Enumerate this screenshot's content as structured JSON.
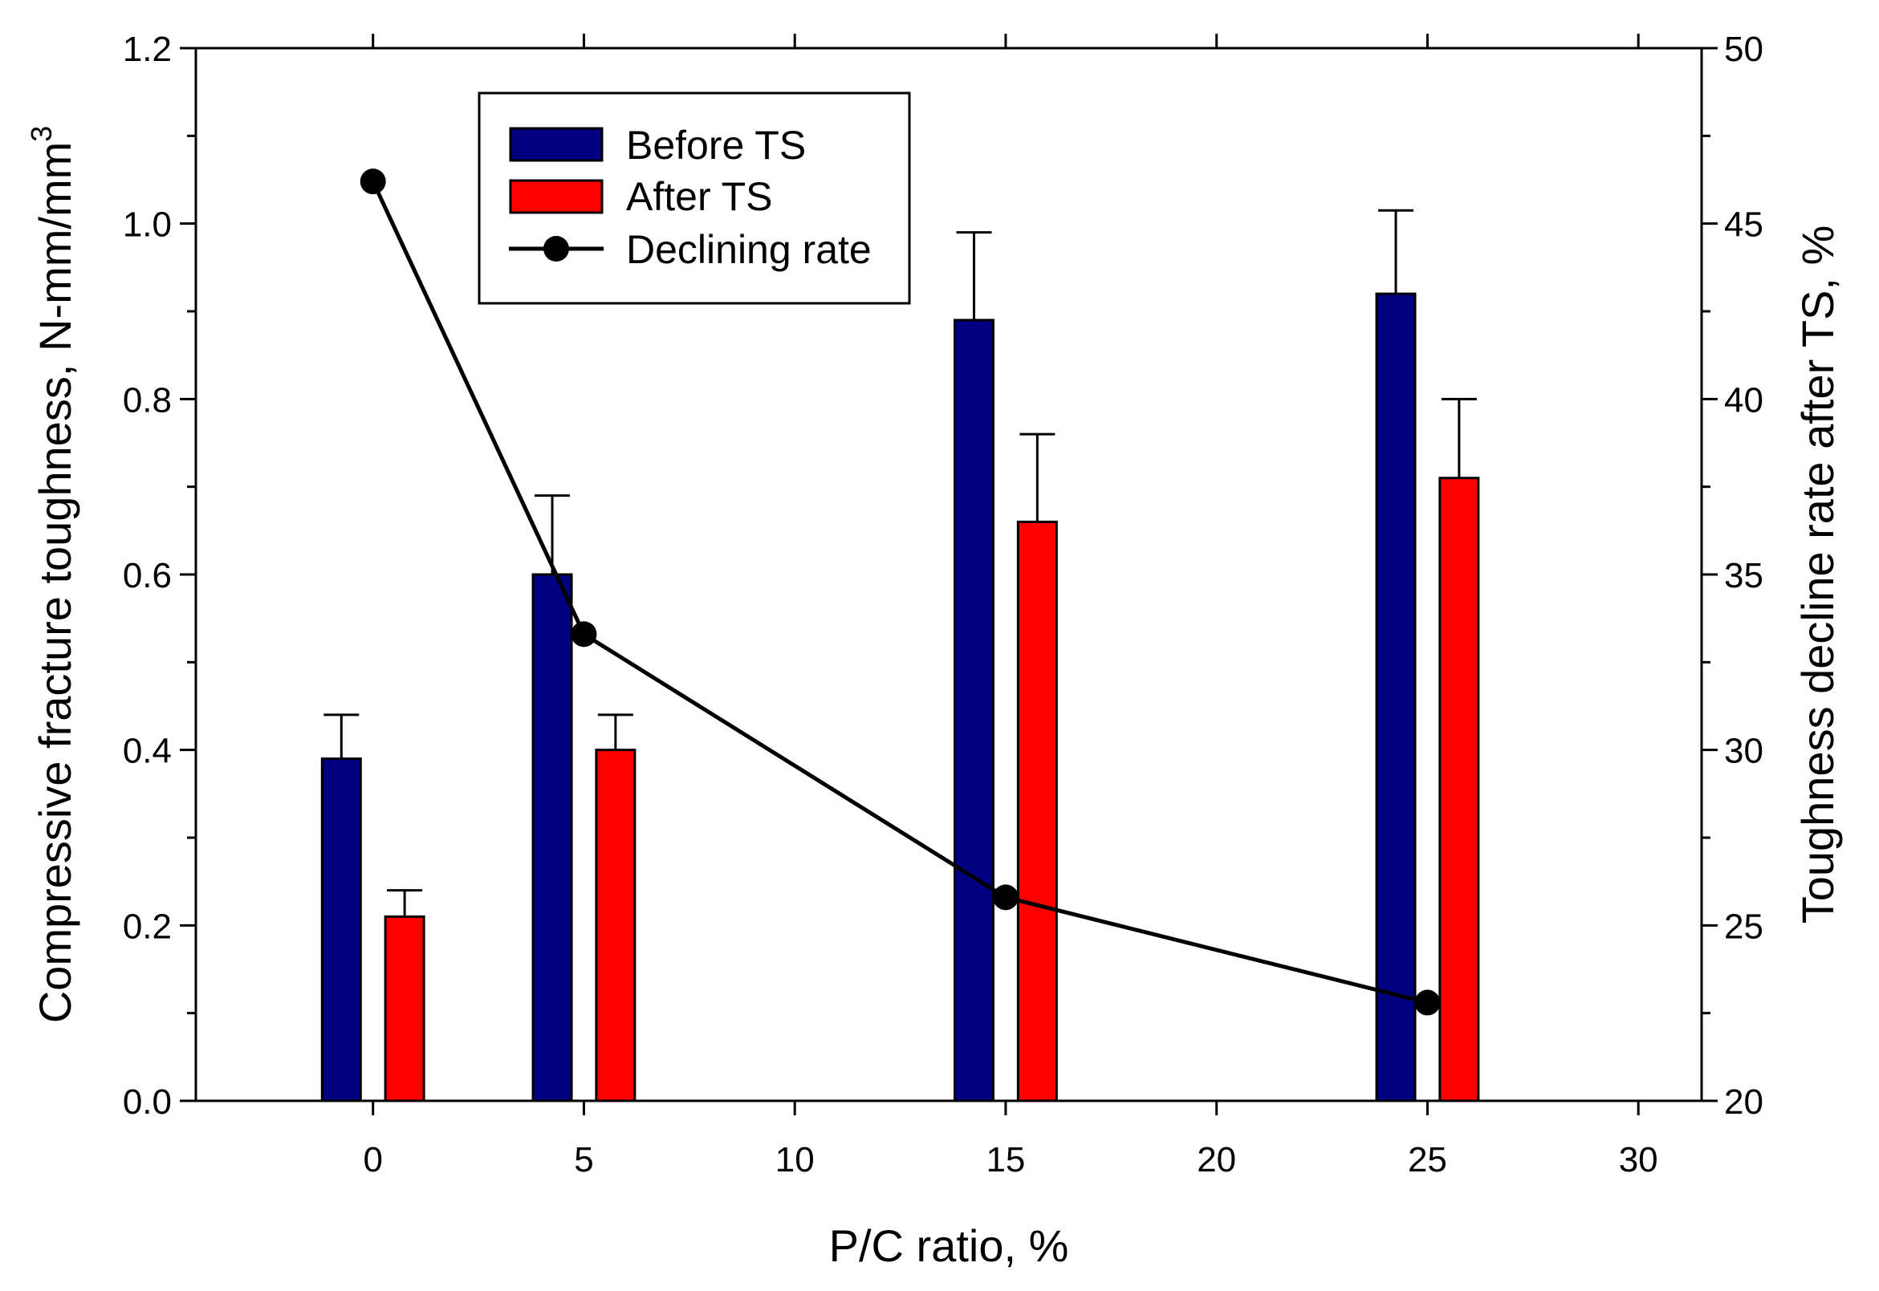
{
  "chart_data": {
    "type": "bar",
    "xlabel": "P/C ratio, %",
    "ylabel_left": "Compressive fracture toughness, N-mm/mm",
    "ylabel_left_superscript": "3",
    "ylabel_right": "Toughness decline rate after TS, %",
    "xlim": [
      -4.2,
      31.5
    ],
    "ylim_left": [
      0,
      1.2
    ],
    "ylim_right": [
      20,
      50
    ],
    "x_ticks": [
      0,
      5,
      10,
      15,
      20,
      25,
      30
    ],
    "y_left_ticks": [
      0.0,
      0.2,
      0.4,
      0.6,
      0.8,
      1.0,
      1.2
    ],
    "y_right_ticks": [
      20,
      25,
      30,
      35,
      40,
      45,
      50
    ],
    "x_tick_labels": [
      "0",
      "5",
      "10",
      "15",
      "20",
      "25",
      "30"
    ],
    "y_left_tick_labels": [
      "0.0",
      "0.2",
      "0.4",
      "0.6",
      "0.8",
      "1.0",
      "1.2"
    ],
    "y_right_tick_labels": [
      "20",
      "25",
      "30",
      "35",
      "40",
      "45",
      "50"
    ],
    "categories": [
      0,
      5,
      15,
      25
    ],
    "series": [
      {
        "name": "Before TS",
        "kind": "bar",
        "axis": "left",
        "color": "#000080",
        "offset": -0.75,
        "values": [
          0.39,
          0.6,
          0.89,
          0.92
        ],
        "errors": [
          0.05,
          0.09,
          0.1,
          0.095
        ]
      },
      {
        "name": "After TS",
        "kind": "bar",
        "axis": "left",
        "color": "#ff0000",
        "offset": 0.75,
        "values": [
          0.21,
          0.4,
          0.66,
          0.71
        ],
        "errors": [
          0.03,
          0.04,
          0.1,
          0.09
        ]
      },
      {
        "name": "Declining rate",
        "kind": "line",
        "axis": "right",
        "color": "#000000",
        "values": [
          46.2,
          33.3,
          25.8,
          22.8
        ]
      }
    ],
    "legend": {
      "position": "top-left",
      "entries": [
        "Before TS",
        "After TS",
        "Declining rate"
      ]
    },
    "grid": false
  }
}
